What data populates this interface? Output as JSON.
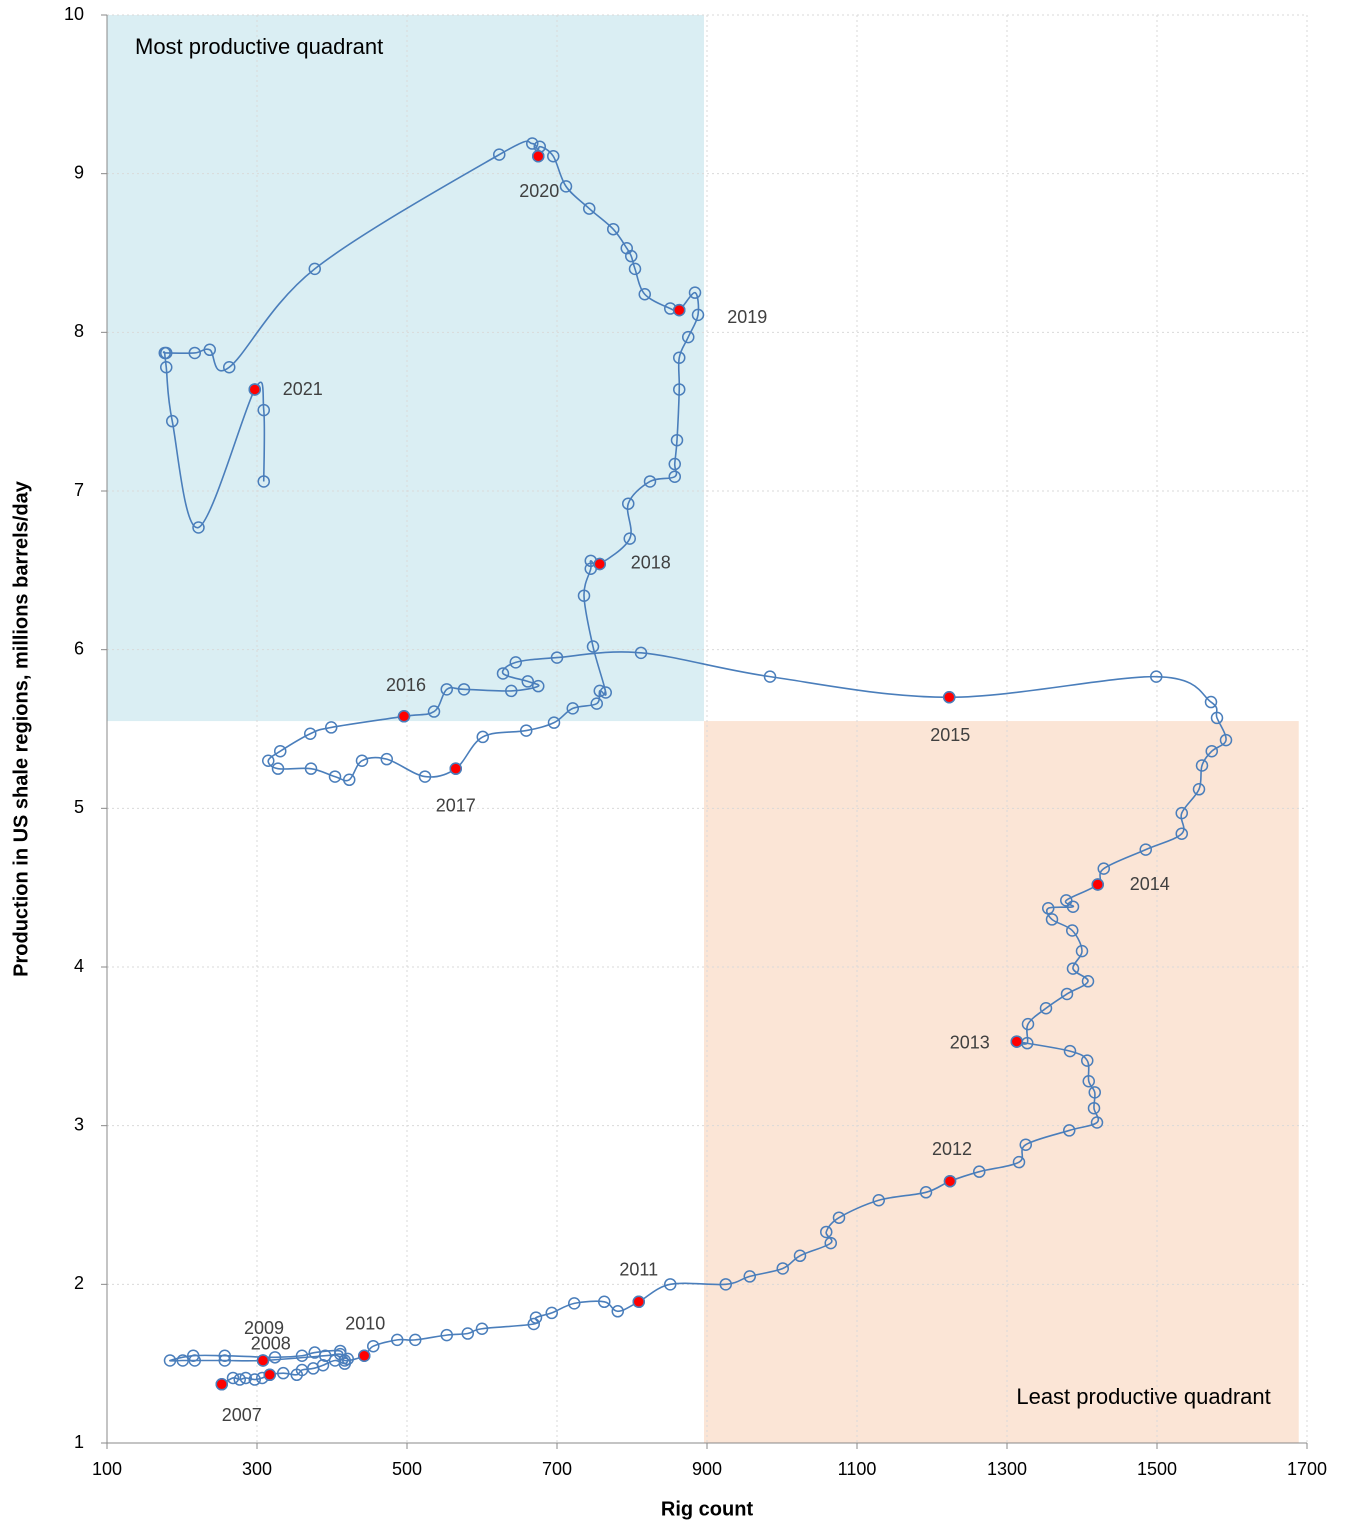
{
  "chart_data": {
    "type": "scatter",
    "x_label": "Rig count",
    "y_label": "Production in US shale regions, millions barrels/day",
    "xlim": [
      100,
      1700
    ],
    "xticks": [
      100,
      300,
      500,
      700,
      900,
      1100,
      1300,
      1500,
      1700
    ],
    "ylim": [
      1,
      10
    ],
    "yticks": [
      1,
      2,
      3,
      4,
      5,
      6,
      7,
      8,
      9,
      10
    ],
    "grid": true,
    "quadrants": [
      {
        "label": "Most productive quadrant",
        "xlim": [
          100,
          896
        ],
        "ylim": [
          5.55,
          10
        ],
        "color": "#daeef3"
      },
      {
        "label": "Least productive quadrant",
        "xlim": [
          896,
          1689
        ],
        "ylim": [
          1,
          5.55
        ],
        "color": "#fbe5d6"
      }
    ],
    "series": [
      {
        "color": "#4a7ebb",
        "smooth": true,
        "x": [
          253,
          268,
          277,
          285,
          297,
          307,
          317,
          335,
          353,
          360,
          375,
          388,
          404,
          417,
          421,
          411,
          391,
          308,
          257,
          217,
          201,
          184,
          215,
          257,
          324,
          360,
          377,
          411,
          417,
          443,
          455,
          487,
          511,
          553,
          581,
          600,
          669,
          672,
          693,
          723,
          763,
          781,
          809,
          851,
          925,
          957,
          1001,
          1024,
          1065,
          1059,
          1076,
          1129,
          1192,
          1224,
          1263,
          1316,
          1325,
          1383,
          1420,
          1416,
          1417,
          1409,
          1407,
          1384,
          1313,
          1327,
          1328,
          1352,
          1380,
          1408,
          1388,
          1400,
          1387,
          1360,
          1355,
          1388,
          1379,
          1421,
          1429,
          1485,
          1533,
          1533,
          1556,
          1560,
          1573,
          1592,
          1580,
          1572,
          1499,
          1223,
          984,
          812,
          700,
          645,
          628,
          661,
          675,
          639,
          576,
          553,
          536,
          496,
          399,
          371,
          331,
          315,
          328,
          372,
          404,
          423,
          440,
          473,
          524,
          565,
          601,
          659,
          696,
          721,
          753,
          757,
          765,
          748,
          736,
          745,
          745,
          757,
          797,
          795,
          824,
          857,
          857,
          860,
          863,
          863,
          875,
          888,
          884,
          863,
          851,
          817,
          804,
          799,
          793,
          775,
          743,
          712,
          695,
          677,
          675,
          667,
          623,
          377,
          263,
          237,
          217,
          179,
          177,
          179,
          187,
          222,
          297,
          309,
          309
        ],
        "values": [
          1.37,
          1.41,
          1.4,
          1.41,
          1.4,
          1.41,
          1.43,
          1.44,
          1.43,
          1.46,
          1.47,
          1.49,
          1.52,
          1.5,
          1.53,
          1.56,
          1.55,
          1.52,
          1.52,
          1.52,
          1.52,
          1.52,
          1.55,
          1.55,
          1.54,
          1.55,
          1.57,
          1.58,
          1.52,
          1.55,
          1.61,
          1.65,
          1.65,
          1.68,
          1.69,
          1.72,
          1.75,
          1.79,
          1.82,
          1.88,
          1.89,
          1.83,
          1.89,
          2.0,
          2.0,
          2.05,
          2.1,
          2.18,
          2.26,
          2.33,
          2.42,
          2.53,
          2.58,
          2.65,
          2.71,
          2.77,
          2.88,
          2.97,
          3.02,
          3.11,
          3.21,
          3.28,
          3.41,
          3.47,
          3.53,
          3.52,
          3.64,
          3.74,
          3.83,
          3.91,
          3.99,
          4.1,
          4.23,
          4.3,
          4.37,
          4.38,
          4.42,
          4.52,
          4.62,
          4.74,
          4.84,
          4.97,
          5.12,
          5.27,
          5.36,
          5.43,
          5.57,
          5.67,
          5.83,
          5.7,
          5.83,
          5.98,
          5.95,
          5.92,
          5.85,
          5.8,
          5.77,
          5.74,
          5.75,
          5.75,
          5.61,
          5.58,
          5.51,
          5.47,
          5.36,
          5.3,
          5.25,
          5.25,
          5.2,
          5.18,
          5.3,
          5.31,
          5.2,
          5.25,
          5.45,
          5.49,
          5.54,
          5.63,
          5.66,
          5.74,
          5.73,
          6.02,
          6.34,
          6.51,
          6.56,
          6.54,
          6.7,
          6.92,
          7.06,
          7.09,
          7.17,
          7.32,
          7.64,
          7.84,
          7.97,
          8.11,
          8.25,
          8.14,
          8.15,
          8.24,
          8.4,
          8.48,
          8.53,
          8.65,
          8.78,
          8.92,
          9.11,
          9.17,
          9.11,
          9.19,
          9.12,
          8.4,
          7.78,
          7.89,
          7.87,
          7.87,
          7.87,
          7.78,
          7.44,
          6.77,
          7.64,
          7.51,
          7.06
        ]
      },
      {
        "color": "#ff0000",
        "x": [
          253,
          317,
          308,
          443,
          809,
          1224,
          1313,
          1421,
          1223,
          496,
          565,
          757,
          863,
          675,
          297
        ],
        "values": [
          1.37,
          1.43,
          1.52,
          1.55,
          1.89,
          2.65,
          3.53,
          4.52,
          5.7,
          5.58,
          5.25,
          6.54,
          8.14,
          9.11,
          7.64
        ],
        "labels": [
          "2007",
          "2008",
          "2009",
          "2010",
          "2011",
          "2012",
          "2013",
          "2014",
          "2015",
          "2016",
          "2017",
          "2018",
          "2019",
          "2020",
          "2021"
        ]
      }
    ]
  }
}
